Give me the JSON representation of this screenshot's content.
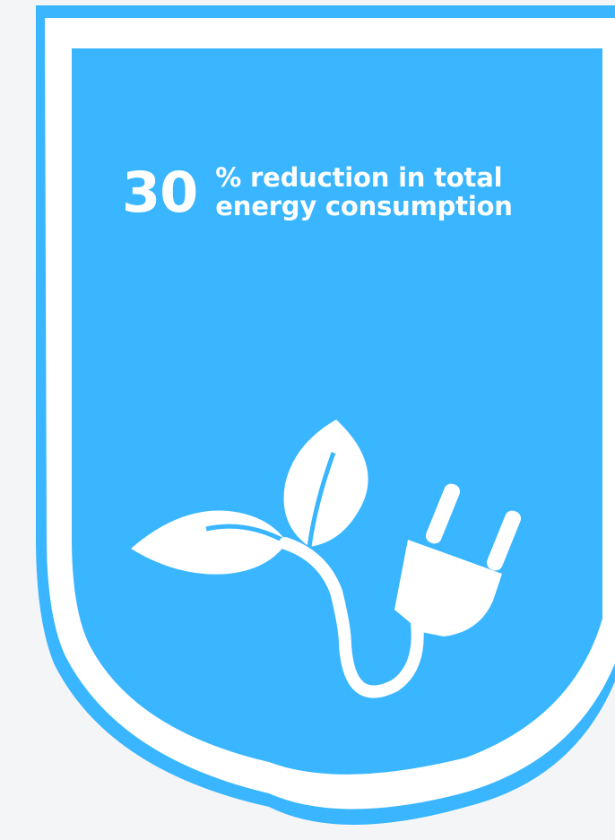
{
  "badge": {
    "stat_number": "30",
    "stat_line1": "% reduction in total",
    "stat_line2": "energy consumption",
    "icon": "leaf-plug-icon"
  },
  "colors": {
    "background": "#f4f5f6",
    "badge_blue": "#39b6ff",
    "border_white": "#ffffff",
    "text": "#ffffff"
  }
}
